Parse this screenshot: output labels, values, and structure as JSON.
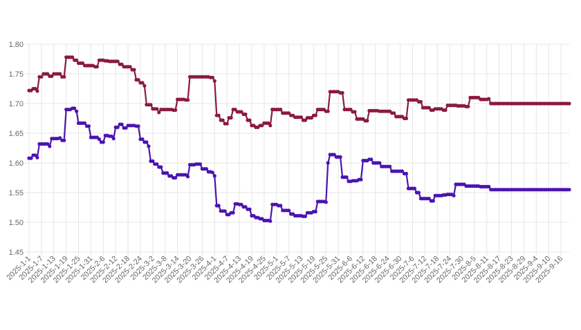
{
  "chart_data": {
    "type": "line",
    "title": "",
    "xlabel": "",
    "ylabel": "",
    "ylim": [
      1.45,
      1.8
    ],
    "y_ticks": [
      "1.45",
      "1.50",
      "1.55",
      "1.60",
      "1.65",
      "1.70",
      "1.75",
      "1.80"
    ],
    "x_range": [
      "2025-1-1",
      "2025-9-20"
    ],
    "x_tick_labels": [
      "2025-1-1",
      "2025-1-7",
      "2025-1-13",
      "2025-1-19",
      "2025-1-25",
      "2025-1-31",
      "2025-2-6",
      "2025-2-12",
      "2025-2-18",
      "2025-2-24",
      "2025-3-2",
      "2025-3-8",
      "2025-3-14",
      "2025-3-20",
      "2025-3-26",
      "2025-4-1",
      "2025-4-7",
      "2025-4-13",
      "2025-4-19",
      "2025-4-25",
      "2025-5-1",
      "2025-5-7",
      "2025-5-13",
      "2025-5-19",
      "2025-5-25",
      "2025-5-31",
      "2025-6-6",
      "2025-6-12",
      "2025-6-18",
      "2025-6-24",
      "2025-6-30",
      "2025-7-6",
      "2025-7-12",
      "2025-7-18",
      "2025-7-24",
      "2025-7-30",
      "2025-8-5",
      "2025-8-11",
      "2025-8-17",
      "2025-8-23",
      "2025-8-29",
      "2025-9-4",
      "2025-9-10",
      "2025-9-16"
    ],
    "grid": true,
    "legend": "none",
    "series": [
      {
        "color": "#8b1a3e",
        "points": [
          [
            "2025-1-1",
            1.722
          ],
          [
            "2025-1-3",
            1.725
          ],
          [
            "2025-1-5",
            1.721
          ],
          [
            "2025-1-6",
            1.745
          ],
          [
            "2025-1-8",
            1.75
          ],
          [
            "2025-1-11",
            1.746
          ],
          [
            "2025-1-13",
            1.75
          ],
          [
            "2025-1-17",
            1.745
          ],
          [
            "2025-1-19",
            1.778
          ],
          [
            "2025-1-23",
            1.773
          ],
          [
            "2025-1-25",
            1.768
          ],
          [
            "2025-1-28",
            1.764
          ],
          [
            "2025-2-2",
            1.762
          ],
          [
            "2025-2-4",
            1.773
          ],
          [
            "2025-2-7",
            1.772
          ],
          [
            "2025-2-9",
            1.771
          ],
          [
            "2025-2-14",
            1.766
          ],
          [
            "2025-2-16",
            1.762
          ],
          [
            "2025-2-20",
            1.757
          ],
          [
            "2025-2-22",
            1.74
          ],
          [
            "2025-2-24",
            1.735
          ],
          [
            "2025-2-26",
            1.73
          ],
          [
            "2025-2-27",
            1.698
          ],
          [
            "2025-3-2",
            1.691
          ],
          [
            "2025-3-5",
            1.685
          ],
          [
            "2025-3-6",
            1.69
          ],
          [
            "2025-3-12",
            1.689
          ],
          [
            "2025-3-14",
            1.707
          ],
          [
            "2025-3-18",
            1.706
          ],
          [
            "2025-3-20",
            1.745
          ],
          [
            "2025-3-24",
            1.745
          ],
          [
            "2025-3-30",
            1.744
          ],
          [
            "2025-4-1",
            1.738
          ],
          [
            "2025-4-2",
            1.68
          ],
          [
            "2025-4-4",
            1.672
          ],
          [
            "2025-4-6",
            1.666
          ],
          [
            "2025-4-8",
            1.676
          ],
          [
            "2025-4-10",
            1.69
          ],
          [
            "2025-4-12",
            1.686
          ],
          [
            "2025-4-15",
            1.682
          ],
          [
            "2025-4-17",
            1.672
          ],
          [
            "2025-4-19",
            1.663
          ],
          [
            "2025-4-21",
            1.66
          ],
          [
            "2025-4-23",
            1.663
          ],
          [
            "2025-4-25",
            1.667
          ],
          [
            "2025-4-28",
            1.663
          ],
          [
            "2025-4-29",
            1.69
          ],
          [
            "2025-5-2",
            1.69
          ],
          [
            "2025-5-4",
            1.684
          ],
          [
            "2025-5-8",
            1.68
          ],
          [
            "2025-5-10",
            1.677
          ],
          [
            "2025-5-14",
            1.672
          ],
          [
            "2025-5-16",
            1.676
          ],
          [
            "2025-5-19",
            1.68
          ],
          [
            "2025-5-21",
            1.69
          ],
          [
            "2025-5-25",
            1.687
          ],
          [
            "2025-5-27",
            1.72
          ],
          [
            "2025-6-1",
            1.718
          ],
          [
            "2025-6-3",
            1.69
          ],
          [
            "2025-6-7",
            1.686
          ],
          [
            "2025-6-9",
            1.674
          ],
          [
            "2025-6-13",
            1.671
          ],
          [
            "2025-6-15",
            1.688
          ],
          [
            "2025-6-20",
            1.687
          ],
          [
            "2025-6-26",
            1.684
          ],
          [
            "2025-6-28",
            1.678
          ],
          [
            "2025-7-2",
            1.675
          ],
          [
            "2025-7-4",
            1.706
          ],
          [
            "2025-7-9",
            1.703
          ],
          [
            "2025-7-11",
            1.693
          ],
          [
            "2025-7-15",
            1.689
          ],
          [
            "2025-7-17",
            1.691
          ],
          [
            "2025-7-21",
            1.689
          ],
          [
            "2025-7-23",
            1.697
          ],
          [
            "2025-7-28",
            1.696
          ],
          [
            "2025-8-1",
            1.695
          ],
          [
            "2025-8-3",
            1.71
          ],
          [
            "2025-8-8",
            1.707
          ],
          [
            "2025-8-12",
            1.708
          ],
          [
            "2025-8-13",
            1.7
          ]
        ]
      },
      {
        "color": "#4a14b0",
        "points": [
          [
            "2025-1-1",
            1.608
          ],
          [
            "2025-1-3",
            1.613
          ],
          [
            "2025-1-5",
            1.609
          ],
          [
            "2025-1-6",
            1.632
          ],
          [
            "2025-1-9",
            1.632
          ],
          [
            "2025-1-11",
            1.628
          ],
          [
            "2025-1-12",
            1.641
          ],
          [
            "2025-1-16",
            1.642
          ],
          [
            "2025-1-17",
            1.638
          ],
          [
            "2025-1-19",
            1.69
          ],
          [
            "2025-1-22",
            1.692
          ],
          [
            "2025-1-24",
            1.687
          ],
          [
            "2025-1-25",
            1.667
          ],
          [
            "2025-1-29",
            1.662
          ],
          [
            "2025-1-31",
            1.643
          ],
          [
            "2025-2-4",
            1.64
          ],
          [
            "2025-2-5",
            1.635
          ],
          [
            "2025-2-7",
            1.646
          ],
          [
            "2025-2-9",
            1.645
          ],
          [
            "2025-2-11",
            1.641
          ],
          [
            "2025-2-12",
            1.66
          ],
          [
            "2025-2-14",
            1.665
          ],
          [
            "2025-2-16",
            1.659
          ],
          [
            "2025-2-18",
            1.663
          ],
          [
            "2025-2-22",
            1.662
          ],
          [
            "2025-2-24",
            1.64
          ],
          [
            "2025-2-26",
            1.635
          ],
          [
            "2025-2-28",
            1.628
          ],
          [
            "2025-3-1",
            1.603
          ],
          [
            "2025-3-3",
            1.598
          ],
          [
            "2025-3-5",
            1.593
          ],
          [
            "2025-3-7",
            1.583
          ],
          [
            "2025-3-10",
            1.578
          ],
          [
            "2025-3-12",
            1.575
          ],
          [
            "2025-3-14",
            1.58
          ],
          [
            "2025-3-18",
            1.58
          ],
          [
            "2025-3-19",
            1.577
          ],
          [
            "2025-3-20",
            1.597
          ],
          [
            "2025-3-23",
            1.598
          ],
          [
            "2025-3-26",
            1.59
          ],
          [
            "2025-3-29",
            1.585
          ],
          [
            "2025-3-31",
            1.584
          ],
          [
            "2025-4-1",
            1.578
          ],
          [
            "2025-4-2",
            1.528
          ],
          [
            "2025-4-4",
            1.519
          ],
          [
            "2025-4-7",
            1.513
          ],
          [
            "2025-4-9",
            1.516
          ],
          [
            "2025-4-11",
            1.531
          ],
          [
            "2025-4-13",
            1.53
          ],
          [
            "2025-4-15",
            1.526
          ],
          [
            "2025-4-17",
            1.522
          ],
          [
            "2025-4-19",
            1.511
          ],
          [
            "2025-4-21",
            1.508
          ],
          [
            "2025-4-23",
            1.506
          ],
          [
            "2025-4-25",
            1.503
          ],
          [
            "2025-4-28",
            1.502
          ],
          [
            "2025-4-29",
            1.53
          ],
          [
            "2025-5-2",
            1.528
          ],
          [
            "2025-5-4",
            1.52
          ],
          [
            "2025-5-8",
            1.514
          ],
          [
            "2025-5-10",
            1.511
          ],
          [
            "2025-5-14",
            1.51
          ],
          [
            "2025-5-16",
            1.516
          ],
          [
            "2025-5-19",
            1.518
          ],
          [
            "2025-5-21",
            1.535
          ],
          [
            "2025-5-25",
            1.534
          ],
          [
            "2025-5-26",
            1.6
          ],
          [
            "2025-5-27",
            1.614
          ],
          [
            "2025-5-30",
            1.61
          ],
          [
            "2025-6-2",
            1.576
          ],
          [
            "2025-6-5",
            1.569
          ],
          [
            "2025-6-7",
            1.57
          ],
          [
            "2025-6-10",
            1.572
          ],
          [
            "2025-6-12",
            1.604
          ],
          [
            "2025-6-15",
            1.606
          ],
          [
            "2025-6-17",
            1.6
          ],
          [
            "2025-6-21",
            1.594
          ],
          [
            "2025-6-26",
            1.586
          ],
          [
            "2025-7-2",
            1.582
          ],
          [
            "2025-7-4",
            1.557
          ],
          [
            "2025-7-8",
            1.55
          ],
          [
            "2025-7-10",
            1.54
          ],
          [
            "2025-7-15",
            1.536
          ],
          [
            "2025-7-17",
            1.545
          ],
          [
            "2025-7-21",
            1.546
          ],
          [
            "2025-7-23",
            1.547
          ],
          [
            "2025-7-26",
            1.545
          ],
          [
            "2025-7-27",
            1.564
          ],
          [
            "2025-8-1",
            1.561
          ],
          [
            "2025-8-3",
            1.561
          ],
          [
            "2025-8-8",
            1.56
          ],
          [
            "2025-8-13",
            1.555
          ]
        ]
      }
    ]
  }
}
